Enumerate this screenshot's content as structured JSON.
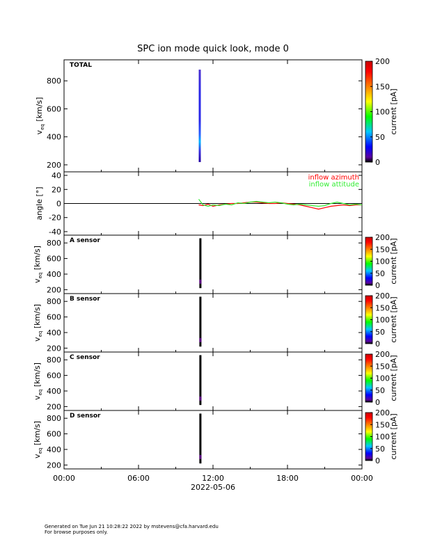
{
  "title": "SPC ion mode quick look, mode 0",
  "footer": {
    "line1": "Generated on Tue Jun 21 10:28:22 2022 by mstevens@cfa.harvard.edu",
    "line2": "For browse purposes only."
  },
  "chart_data": [
    {
      "type": "heatmap",
      "panel_label": "TOTAL",
      "ylabel": "v_eq [km/s]",
      "ylim": [
        150,
        950
      ],
      "yticks": [
        200,
        400,
        600,
        800
      ],
      "xlabel": "2022-05-06",
      "xticks": [
        "00:00",
        "06:00",
        "12:00",
        "18:00",
        "00:00"
      ],
      "xlim_hours": [
        0,
        24
      ],
      "data_time_range_hours": [
        10.85,
        11.0
      ],
      "velocity_range": [
        220,
        880
      ],
      "colorbar": {
        "label": "current [pA]",
        "range": [
          0,
          200
        ],
        "ticks": [
          0,
          50,
          100,
          150,
          200
        ]
      }
    },
    {
      "type": "line",
      "ylabel": "angle [°]",
      "ylim": [
        -45,
        45
      ],
      "yticks": [
        -40,
        -20,
        0,
        20,
        40
      ],
      "xticks": [
        "00:00",
        "06:00",
        "12:00",
        "18:00",
        "00:00"
      ],
      "series": [
        {
          "name": "inflow azimuth",
          "color": "#ff0000",
          "x_hours": [
            10.85,
            11.2,
            11.6,
            12.0,
            12.5,
            13.0,
            13.5,
            14.0,
            14.5,
            15.0,
            15.5,
            16.0,
            16.5,
            17.0,
            17.5,
            18.0,
            18.5,
            19.0,
            19.5,
            20.0,
            20.5,
            21.0,
            21.5,
            22.0,
            22.5,
            23.0,
            23.5,
            24.0
          ],
          "values": [
            -2,
            -3,
            -1,
            -4,
            -2,
            -1,
            0,
            0,
            1,
            2,
            2,
            1,
            0,
            0,
            1,
            0,
            -1,
            -2,
            -4,
            -6,
            -8,
            -6,
            -4,
            -3,
            -2,
            -3,
            -2,
            -2
          ]
        },
        {
          "name": "inflow attitude",
          "color": "#33ee33",
          "x_hours": [
            10.85,
            11.2,
            11.6,
            12.0,
            12.5,
            13.0,
            13.5,
            14.0,
            14.5,
            15.0,
            15.5,
            16.0,
            16.5,
            17.0,
            17.5,
            18.0,
            18.5,
            19.0,
            19.5,
            20.0,
            20.5,
            21.0,
            21.5,
            22.0,
            22.5,
            23.0,
            23.5,
            24.0
          ],
          "values": [
            6,
            -2,
            -4,
            -2,
            -3,
            -1,
            -2,
            1,
            0,
            2,
            3,
            2,
            1,
            2,
            1,
            -1,
            -2,
            -1,
            -2,
            -3,
            -4,
            -3,
            0,
            2,
            0,
            -2,
            -1,
            -2
          ]
        }
      ]
    },
    {
      "type": "heatmap",
      "panel_label": "A sensor",
      "ylabel": "v_eq [km/s]",
      "ylim": [
        150,
        900
      ],
      "yticks": [
        200,
        400,
        600,
        800
      ],
      "data_time_range_hours": [
        10.9,
        11.0
      ],
      "velocity_range": [
        220,
        860
      ],
      "colorbar": {
        "label": "current [pA]",
        "range": [
          0,
          200
        ],
        "ticks": [
          0,
          50,
          100,
          150,
          200
        ]
      }
    },
    {
      "type": "heatmap",
      "panel_label": "B sensor",
      "ylabel": "v_eq [km/s]",
      "ylim": [
        150,
        900
      ],
      "yticks": [
        200,
        400,
        600,
        800
      ],
      "data_time_range_hours": [
        10.9,
        11.0
      ],
      "velocity_range": [
        220,
        860
      ],
      "colorbar": {
        "label": "current [pA]",
        "range": [
          0,
          200
        ],
        "ticks": [
          0,
          50,
          100,
          150,
          200
        ]
      }
    },
    {
      "type": "heatmap",
      "panel_label": "C sensor",
      "ylabel": "v_eq [km/s]",
      "ylim": [
        150,
        900
      ],
      "yticks": [
        200,
        400,
        600,
        800
      ],
      "data_time_range_hours": [
        10.9,
        11.0
      ],
      "velocity_range": [
        220,
        860
      ],
      "colorbar": {
        "label": "current [pA]",
        "range": [
          0,
          200
        ],
        "ticks": [
          0,
          50,
          100,
          150,
          200
        ]
      }
    },
    {
      "type": "heatmap",
      "panel_label": "D sensor",
      "ylabel": "v_eq [km/s]",
      "ylim": [
        150,
        900
      ],
      "yticks": [
        200,
        400,
        600,
        800
      ],
      "data_time_range_hours": [
        10.9,
        11.0
      ],
      "velocity_range": [
        220,
        860
      ],
      "colorbar": {
        "label": "current [pA]",
        "range": [
          0,
          200
        ],
        "ticks": [
          0,
          50,
          100,
          150,
          200
        ]
      }
    }
  ]
}
